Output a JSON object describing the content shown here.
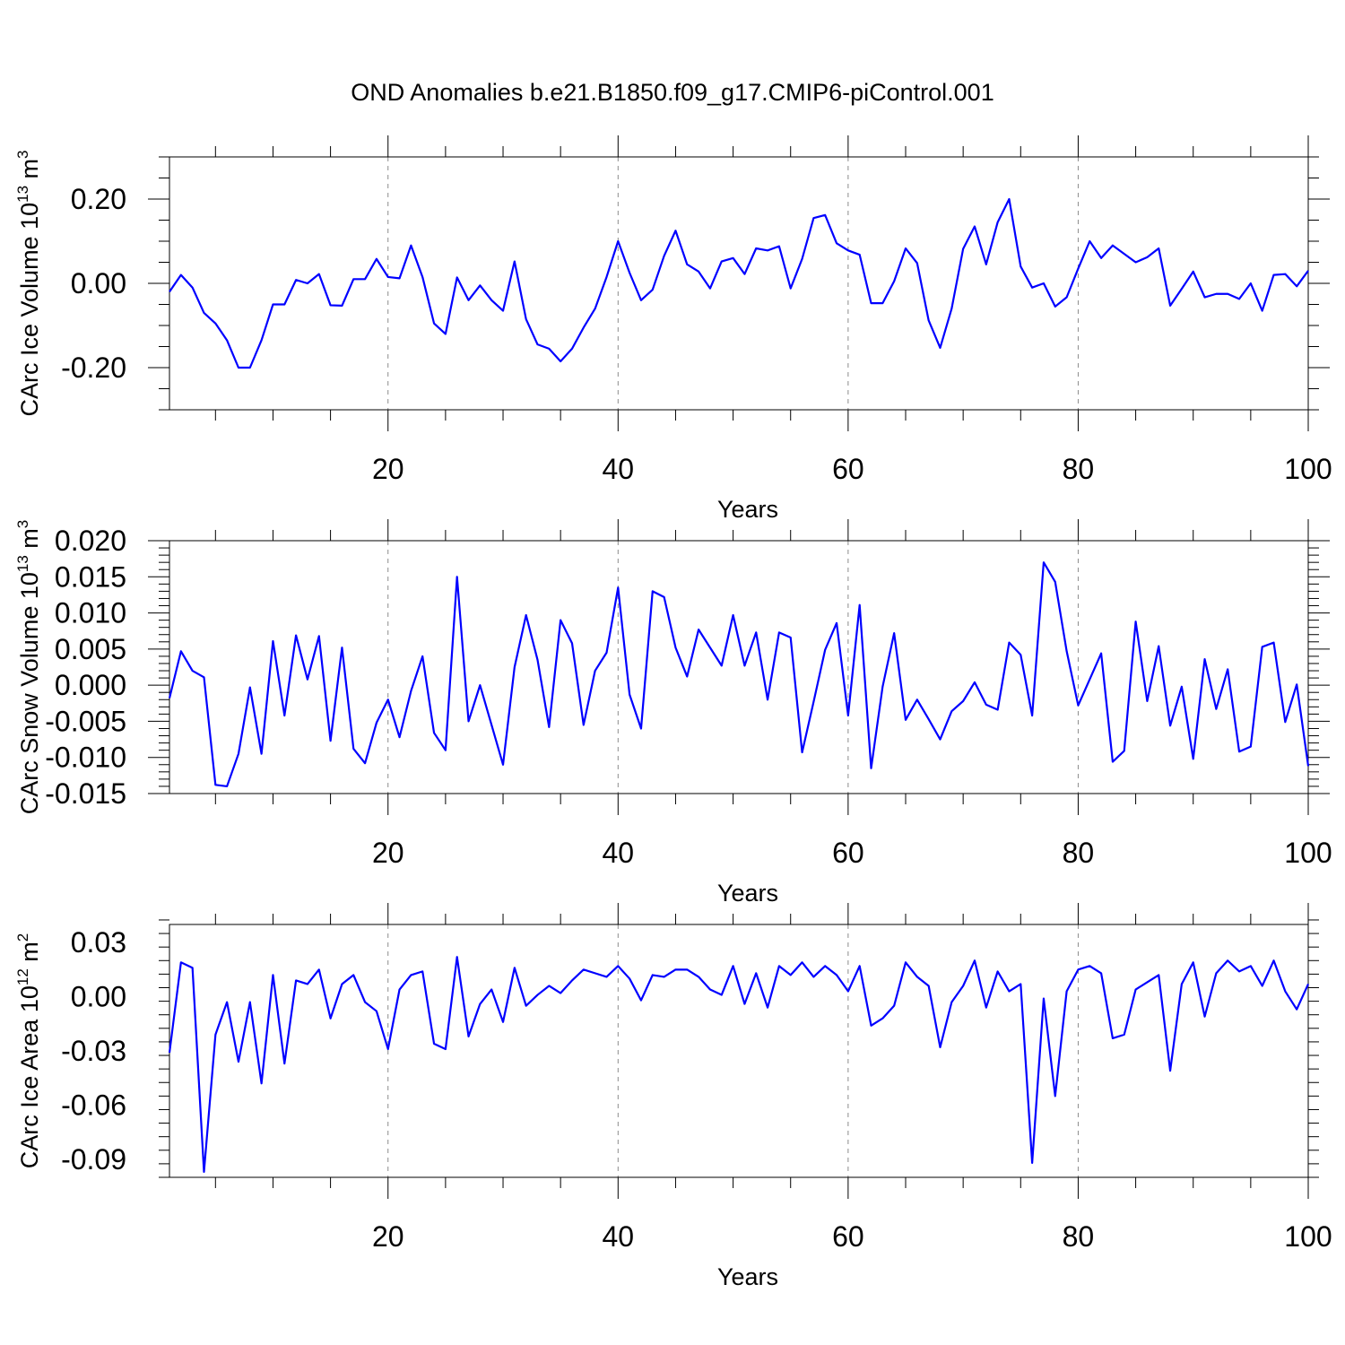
{
  "title": "OND Anomalies b.e21.B1850.f09_g17.CMIP6-piControl.001",
  "line_color": "#0000ff",
  "chart_data": [
    {
      "type": "line",
      "ylabel": "CArc Ice Volume 10",
      "ylabel_exp": "13",
      "ylabel_unit": "m",
      "ylabel_unit_exp": "3",
      "xlabel": "Years",
      "xlim": [
        1,
        100
      ],
      "ylim": [
        -0.3,
        0.3
      ],
      "yticks": [
        -0.2,
        0.0,
        0.2
      ],
      "ytick_labels": [
        "-0.20",
        "0.00",
        "0.20"
      ],
      "yminor_step": 0.05,
      "xticks": [
        20,
        40,
        60,
        80,
        100
      ],
      "xtick_labels": [
        "20",
        "40",
        "60",
        "80",
        "100"
      ],
      "xminor_step": 5,
      "grid": "vertical dashed at 20, 40, 60, 80",
      "series": [
        {
          "values": [
            -0.02,
            0.02,
            -0.01,
            -0.07,
            -0.095,
            -0.135,
            -0.2,
            -0.2,
            -0.135,
            -0.05,
            -0.05,
            0.008,
            0.0,
            0.022,
            -0.052,
            -0.053,
            0.01,
            0.01,
            0.058,
            0.015,
            0.012,
            0.09,
            0.015,
            -0.095,
            -0.12,
            0.014,
            -0.04,
            -0.005,
            -0.04,
            -0.065,
            0.052,
            -0.085,
            -0.145,
            -0.155,
            -0.185,
            -0.155,
            -0.105,
            -0.06,
            0.015,
            0.1,
            0.025,
            -0.04,
            -0.015,
            0.065,
            0.125,
            0.045,
            0.028,
            -0.012,
            0.052,
            0.06,
            0.022,
            0.083,
            0.078,
            0.088,
            -0.012,
            0.058,
            0.155,
            0.162,
            0.095,
            0.078,
            0.068,
            -0.047,
            -0.047,
            0.005,
            0.083,
            0.048,
            -0.088,
            -0.153,
            -0.06,
            0.082,
            0.135,
            0.045,
            0.145,
            0.2,
            0.04,
            -0.01,
            0.0,
            -0.055,
            -0.033,
            0.035,
            0.1,
            0.06,
            0.09,
            0.07,
            0.05,
            0.062,
            0.083,
            -0.053,
            -0.013,
            0.028,
            -0.033,
            -0.025,
            -0.025,
            -0.037,
            0.0,
            -0.065,
            0.02,
            0.022,
            -0.007,
            0.03
          ]
        }
      ]
    },
    {
      "type": "line",
      "ylabel": "CArc Snow Volume 10",
      "ylabel_exp": "13",
      "ylabel_unit": "m",
      "ylabel_unit_exp": "3",
      "xlabel": "Years",
      "xlim": [
        1,
        100
      ],
      "ylim": [
        -0.015,
        0.02
      ],
      "yticks": [
        -0.015,
        -0.01,
        -0.005,
        0.0,
        0.005,
        0.01,
        0.015,
        0.02
      ],
      "ytick_labels": [
        "-0.015",
        "-0.010",
        "-0.005",
        "0.000",
        "0.005",
        "0.010",
        "0.015",
        "0.020"
      ],
      "yminor_step": 0.001,
      "xticks": [
        20,
        40,
        60,
        80,
        100
      ],
      "xtick_labels": [
        "20",
        "40",
        "60",
        "80",
        "100"
      ],
      "xminor_step": 5,
      "grid": "vertical dashed at 20, 40, 60, 80",
      "series": [
        {
          "values": [
            -0.0018,
            0.0047,
            0.002,
            0.0011,
            -0.0138,
            -0.014,
            -0.0095,
            -0.0003,
            -0.0095,
            0.0061,
            -0.0042,
            0.0069,
            0.0008,
            0.0068,
            -0.0077,
            0.0052,
            -0.0088,
            -0.0108,
            -0.0052,
            -0.002,
            -0.0072,
            -0.0008,
            0.004,
            -0.0066,
            -0.009,
            0.015,
            -0.005,
            0.0,
            -0.0055,
            -0.011,
            0.0025,
            0.0097,
            0.0035,
            -0.0058,
            0.009,
            0.0058,
            -0.0055,
            0.002,
            0.0045,
            0.0135,
            -0.0013,
            -0.006,
            0.013,
            0.0122,
            0.0052,
            0.0012,
            0.0077,
            0.0052,
            0.0027,
            0.0097,
            0.0027,
            0.0073,
            -0.002,
            0.0073,
            0.0066,
            -0.0093,
            -0.0023,
            0.0049,
            0.0086,
            -0.0042,
            0.0111,
            -0.0115,
            -0.0002,
            0.0072,
            -0.0048,
            -0.002,
            -0.0047,
            -0.0075,
            -0.0036,
            -0.0022,
            0.0004,
            -0.0027,
            -0.0034,
            0.0059,
            0.0042,
            -0.0042,
            0.017,
            0.0143,
            0.0047,
            -0.0028,
            0.0008,
            0.0044,
            -0.0106,
            -0.0091,
            0.0088,
            -0.0022,
            0.0054,
            -0.0056,
            -0.0002,
            -0.0102,
            0.0036,
            -0.0033,
            0.0022,
            -0.0092,
            -0.0085,
            0.0053,
            0.0059,
            -0.0051,
            0.0001,
            -0.0112
          ]
        }
      ]
    },
    {
      "type": "line",
      "ylabel": "CArc Ice Area 10",
      "ylabel_exp": "12",
      "ylabel_unit": "m",
      "ylabel_unit_exp": "2",
      "xlabel": "Years",
      "xlim": [
        1,
        100
      ],
      "ylim": [
        -0.1,
        0.04
      ],
      "yticks": [
        -0.09,
        -0.06,
        -0.03,
        0.0,
        0.03
      ],
      "ytick_labels": [
        "-0.09",
        "-0.06",
        "-0.03",
        "0.00",
        "0.03"
      ],
      "yminor_step": 0.0075,
      "xticks": [
        20,
        40,
        60,
        80,
        100
      ],
      "xtick_labels": [
        "20",
        "40",
        "60",
        "80",
        "100"
      ],
      "xminor_step": 5,
      "grid": "vertical dashed at 20, 40, 60, 80",
      "series": [
        {
          "values": [
            -0.031,
            0.019,
            0.016,
            -0.097,
            -0.021,
            -0.003,
            -0.036,
            -0.003,
            -0.048,
            0.012,
            -0.037,
            0.009,
            0.007,
            0.015,
            -0.012,
            0.007,
            0.012,
            -0.003,
            -0.008,
            -0.029,
            0.004,
            0.012,
            0.014,
            -0.026,
            -0.029,
            0.022,
            -0.022,
            -0.004,
            0.004,
            -0.014,
            0.016,
            -0.005,
            0.001,
            0.006,
            0.002,
            0.009,
            0.015,
            0.013,
            0.011,
            0.017,
            0.01,
            -0.002,
            0.012,
            0.011,
            0.015,
            0.015,
            0.011,
            0.004,
            0.001,
            0.017,
            -0.004,
            0.013,
            -0.006,
            0.017,
            0.012,
            0.019,
            0.011,
            0.017,
            0.012,
            0.003,
            0.017,
            -0.016,
            -0.012,
            -0.005,
            0.019,
            0.011,
            0.006,
            -0.028,
            -0.003,
            0.006,
            0.02,
            -0.006,
            0.014,
            0.003,
            0.007,
            -0.092,
            -0.001,
            -0.055,
            0.003,
            0.015,
            0.017,
            0.013,
            -0.023,
            -0.021,
            0.004,
            0.008,
            0.012,
            -0.041,
            0.007,
            0.019,
            -0.011,
            0.013,
            0.02,
            0.014,
            0.017,
            0.006,
            0.02,
            0.003,
            -0.007,
            0.007
          ]
        }
      ]
    }
  ]
}
